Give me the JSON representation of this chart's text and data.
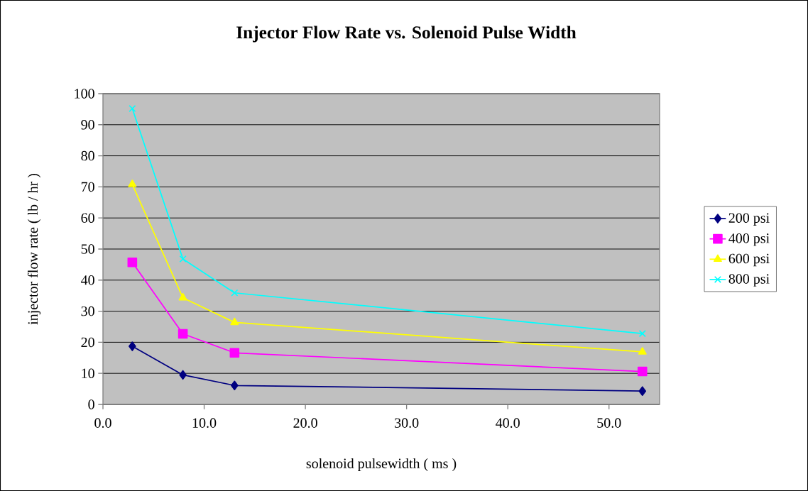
{
  "chart_data": {
    "type": "line",
    "title": "Injector Flow Rate vs. Solenoid Pulse Width",
    "xlabel": "solenoid pulsewidth ( ms )",
    "ylabel": "injector flow rate ( lb / hr )",
    "xlim": [
      0,
      55
    ],
    "xticks": [
      {
        "value": 0,
        "label": "0.0"
      },
      {
        "value": 10,
        "label": "10.0"
      },
      {
        "value": 20,
        "label": "20.0"
      },
      {
        "value": 30,
        "label": "30.0"
      },
      {
        "value": 40,
        "label": "40.0"
      },
      {
        "value": 50,
        "label": "50.0"
      }
    ],
    "ylim": [
      0,
      100
    ],
    "yticks": [
      0,
      10,
      20,
      30,
      40,
      50,
      60,
      70,
      80,
      90,
      100
    ],
    "grid": "y",
    "legend": "right",
    "x": [
      2.9,
      7.9,
      13.0,
      53.3
    ],
    "series": [
      {
        "name": "200 psi",
        "color": "#000080",
        "marker": "diamond",
        "values": [
          18.7,
          9.5,
          6.1,
          4.3
        ]
      },
      {
        "name": "400 psi",
        "color": "#ff00ff",
        "marker": "square",
        "values": [
          45.7,
          22.7,
          16.6,
          10.6
        ]
      },
      {
        "name": "600 psi",
        "color": "#ffff00",
        "marker": "triangle",
        "values": [
          70.8,
          34.3,
          26.4,
          16.9
        ]
      },
      {
        "name": "800 psi",
        "color": "#00ffff",
        "marker": "cross",
        "values": [
          95.2,
          46.8,
          35.9,
          22.8
        ]
      }
    ]
  }
}
